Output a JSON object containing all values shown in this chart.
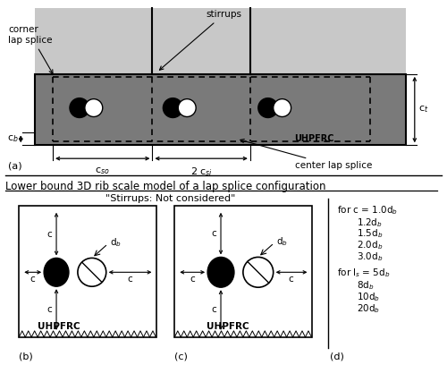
{
  "bg_color": "#ffffff",
  "light_gray": "#c8c8c8",
  "dark_gray": "#7a7a7a",
  "title_lower": "Lower bound 3D rib scale model of a lap splice configuration",
  "stirrups_label": "stirrups",
  "corner_label": "corner\nlap splice",
  "center_label": "center lap splice",
  "UHPFRC_label": "UHPFRC",
  "ct_label": "c$_t$",
  "cb_label": "c$_b$",
  "cso_label": "c$_{so}$",
  "csi_label": "2 c$_{si}$",
  "stirrups_not": "\"Stirrups: Not considered\"",
  "db_label": "d$_b$",
  "c_label": "c",
  "b_label": "(b)",
  "c_label2": "(c)",
  "d_label": "(d)",
  "a_label": "(a)",
  "for_c": "for c = 1.0d$_b$",
  "c_vals": [
    "1.2d$_b$",
    "1.5d$_b$",
    "2.0d$_b$",
    "3.0d$_b$"
  ],
  "for_ls": "for l$_s$ = 5d$_b$",
  "ls_vals": [
    "8d$_b$",
    "10d$_b$",
    "20d$_b$"
  ]
}
